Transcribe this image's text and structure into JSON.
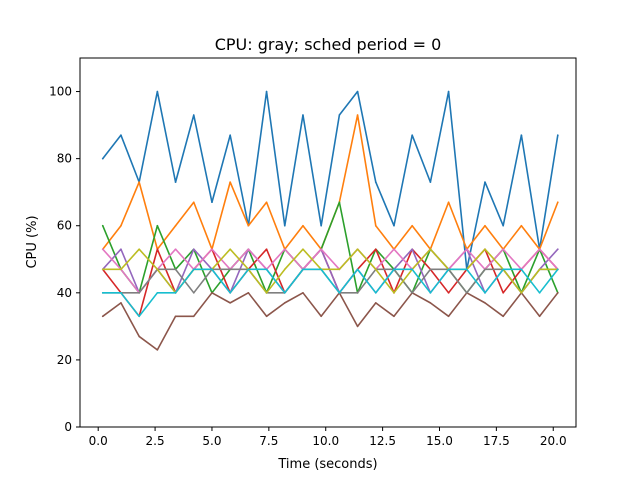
{
  "chart_data": {
    "type": "line",
    "title": "CPU: gray; sched period = 0",
    "xlabel": "Time (seconds)",
    "ylabel": "CPU (%)",
    "xlim": [
      -0.8,
      21.0
    ],
    "ylim": [
      0,
      110
    ],
    "xticks": [
      0.0,
      2.5,
      5.0,
      7.5,
      10.0,
      12.5,
      15.0,
      17.5,
      20.0
    ],
    "xtick_labels": [
      "0.0",
      "2.5",
      "5.0",
      "7.5",
      "10.0",
      "12.5",
      "15.0",
      "17.5",
      "20.0"
    ],
    "yticks": [
      0,
      20,
      40,
      60,
      80,
      100
    ],
    "ytick_labels": [
      "0",
      "20",
      "40",
      "60",
      "80",
      "100"
    ],
    "grid": false,
    "x": [
      0.2,
      1.0,
      1.8,
      2.6,
      3.4,
      4.2,
      5.0,
      5.8,
      6.6,
      7.4,
      8.2,
      9.0,
      9.8,
      10.6,
      11.4,
      12.2,
      13.0,
      13.8,
      14.6,
      15.4,
      16.2,
      17.0,
      17.8,
      18.6,
      19.4,
      20.2
    ],
    "series": [
      {
        "color": "#1f77b4",
        "values": [
          80,
          87,
          73,
          100,
          73,
          93,
          67,
          87,
          60,
          100,
          60,
          93,
          60,
          93,
          100,
          73,
          60,
          87,
          73,
          100,
          47,
          73,
          60,
          87,
          53,
          87
        ]
      },
      {
        "color": "#ff7f0e",
        "values": [
          53,
          60,
          73,
          53,
          60,
          67,
          53,
          73,
          60,
          67,
          53,
          60,
          53,
          67,
          93,
          60,
          53,
          60,
          53,
          67,
          53,
          60,
          53,
          60,
          53,
          67
        ]
      },
      {
        "color": "#2ca02c",
        "values": [
          60,
          47,
          40,
          60,
          47,
          53,
          40,
          47,
          53,
          40,
          53,
          47,
          53,
          67,
          40,
          53,
          47,
          40,
          53,
          47,
          40,
          47,
          53,
          40,
          53,
          40
        ]
      },
      {
        "color": "#d62728",
        "values": [
          47,
          40,
          33,
          53,
          40,
          47,
          53,
          40,
          47,
          53,
          40,
          47,
          53,
          40,
          47,
          53,
          40,
          53,
          47,
          40,
          47,
          53,
          40,
          47,
          53,
          47
        ]
      },
      {
        "color": "#9467bd",
        "values": [
          47,
          53,
          40,
          47,
          40,
          53,
          47,
          40,
          53,
          47,
          40,
          47,
          53,
          40,
          47,
          40,
          47,
          53,
          40,
          47,
          53,
          40,
          47,
          40,
          47,
          53
        ]
      },
      {
        "color": "#8c564b",
        "values": [
          33,
          37,
          27,
          23,
          33,
          33,
          40,
          37,
          40,
          33,
          37,
          40,
          33,
          40,
          30,
          37,
          33,
          40,
          37,
          33,
          40,
          37,
          33,
          40,
          33,
          40
        ]
      },
      {
        "color": "#e377c2",
        "values": [
          53,
          47,
          40,
          47,
          53,
          47,
          53,
          47,
          53,
          47,
          53,
          47,
          53,
          47,
          53,
          47,
          53,
          47,
          53,
          47,
          53,
          47,
          53,
          47,
          53,
          47
        ]
      },
      {
        "color": "#7f7f7f",
        "values": [
          40,
          40,
          40,
          47,
          47,
          40,
          47,
          47,
          47,
          40,
          40,
          47,
          47,
          40,
          40,
          47,
          47,
          40,
          47,
          47,
          40,
          47,
          47,
          40,
          47,
          47
        ]
      },
      {
        "color": "#bcbd22",
        "values": [
          47,
          47,
          53,
          47,
          40,
          47,
          47,
          53,
          47,
          40,
          47,
          53,
          47,
          47,
          53,
          47,
          40,
          47,
          53,
          47,
          47,
          53,
          47,
          40,
          47,
          47
        ]
      },
      {
        "color": "#17becf",
        "values": [
          40,
          40,
          33,
          40,
          40,
          47,
          47,
          40,
          47,
          47,
          40,
          47,
          47,
          40,
          47,
          40,
          47,
          47,
          40,
          47,
          47,
          40,
          47,
          47,
          40,
          47
        ]
      }
    ]
  }
}
